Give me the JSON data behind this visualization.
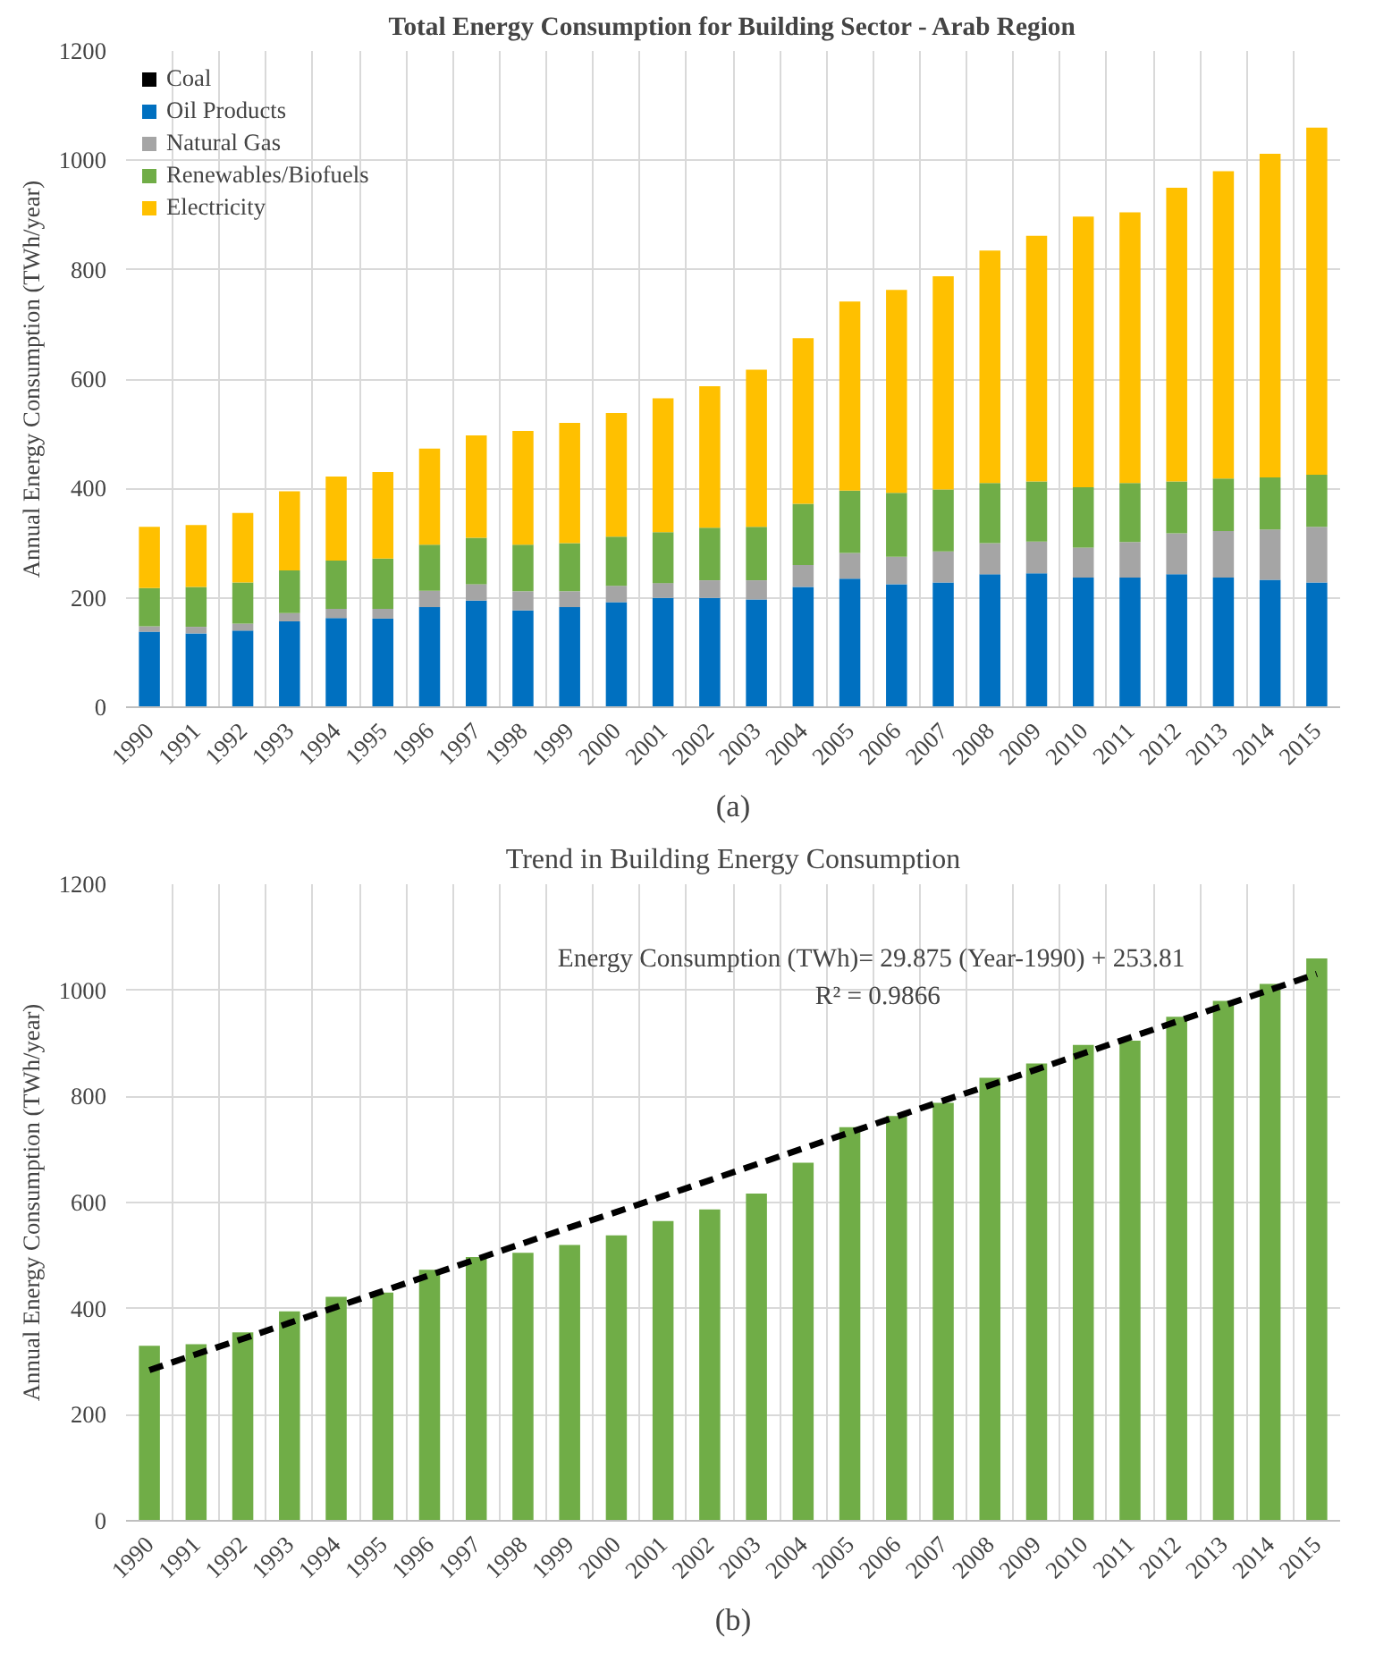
{
  "chart_data": [
    {
      "type": "bar",
      "title": "Total Energy Consumption for Building Sector - Arab Region",
      "ylabel": "Annual Energy Consumption (TWh/year)",
      "categories": [
        "1990",
        "1991",
        "1992",
        "1993",
        "1994",
        "1995",
        "1996",
        "1997",
        "1998",
        "1999",
        "2000",
        "2001",
        "2002",
        "2003",
        "2004",
        "2005",
        "2006",
        "2007",
        "2008",
        "2009",
        "2010",
        "2011",
        "2012",
        "2013",
        "2014",
        "2015"
      ],
      "stacked": true,
      "ylim": [
        0,
        1200
      ],
      "yticks": [
        0,
        200,
        400,
        600,
        800,
        1000,
        1200
      ],
      "grid": true,
      "legend": "top left",
      "annotations": [
        "(a)"
      ],
      "series": [
        {
          "name": "Coal",
          "color": "#000000",
          "values": [
            0,
            0,
            0,
            0,
            0,
            0,
            0,
            0,
            0,
            0,
            0,
            0,
            0,
            0,
            0,
            0,
            0,
            0,
            0,
            0,
            0,
            0,
            0,
            0,
            0,
            0
          ]
        },
        {
          "name": "Oil Products",
          "color": "#0070c0",
          "values": [
            138,
            135,
            140,
            157,
            163,
            162,
            183,
            195,
            177,
            183,
            192,
            200,
            200,
            197,
            220,
            235,
            225,
            228,
            243,
            245,
            237,
            237,
            243,
            237,
            233,
            228
          ]
        },
        {
          "name": "Natural Gas",
          "color": "#a5a5a5",
          "values": [
            10,
            12,
            13,
            15,
            17,
            18,
            30,
            30,
            35,
            29,
            30,
            27,
            32,
            35,
            40,
            47,
            50,
            57,
            57,
            58,
            55,
            65,
            75,
            85,
            92,
            102
          ]
        },
        {
          "name": "Renewables/Biofuels",
          "color": "#70ad47",
          "values": [
            70,
            73,
            75,
            78,
            88,
            92,
            84,
            85,
            85,
            88,
            90,
            93,
            96,
            98,
            112,
            114,
            117,
            113,
            110,
            110,
            110,
            108,
            95,
            96,
            95,
            95
          ]
        },
        {
          "name": "Electricity",
          "color": "#ffc000",
          "values": [
            112,
            113,
            127,
            145,
            154,
            158,
            176,
            187,
            208,
            220,
            226,
            245,
            259,
            287,
            303,
            346,
            371,
            390,
            425,
            449,
            495,
            495,
            537,
            562,
            592,
            635
          ]
        }
      ]
    },
    {
      "type": "bar",
      "title": "Trend in Building Energy Consumption",
      "ylabel": "Annual Energy Consumption (TWh/year)",
      "categories": [
        "1990",
        "1991",
        "1992",
        "1993",
        "1994",
        "1995",
        "1996",
        "1997",
        "1998",
        "1999",
        "2000",
        "2001",
        "2002",
        "2003",
        "2004",
        "2005",
        "2006",
        "2007",
        "2008",
        "2009",
        "2010",
        "2011",
        "2012",
        "2013",
        "2014",
        "2015"
      ],
      "ylim": [
        0,
        1200
      ],
      "yticks": [
        0,
        200,
        400,
        600,
        800,
        1000,
        1200
      ],
      "grid": true,
      "annotations": [
        "Energy Consumption (TWh)= 29.875  (Year-1990)  + 253.81",
        "R² = 0.9866",
        "(b)"
      ],
      "series": [
        {
          "color": "#70ad47",
          "values": [
            330,
            333,
            355,
            395,
            422,
            430,
            473,
            497,
            505,
            520,
            538,
            565,
            587,
            617,
            675,
            742,
            763,
            788,
            835,
            862,
            897,
            905,
            950,
            980,
            1012,
            1060
          ]
        },
        {
          "type": "line",
          "line_style": "dashed",
          "color": "#000000",
          "values": [
            284,
            314,
            343,
            373,
            403,
            433,
            463,
            493,
            523,
            553,
            582,
            612,
            642,
            672,
            702,
            732,
            762,
            792,
            821,
            851,
            881,
            911,
            941,
            971,
            1001,
            1031
          ]
        }
      ]
    }
  ]
}
